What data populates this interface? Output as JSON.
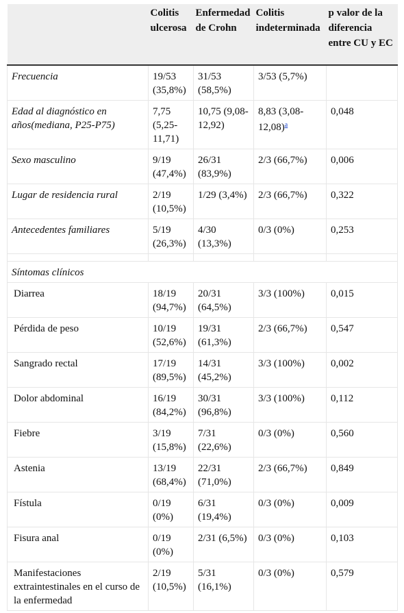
{
  "headers": [
    "",
    "Colitis ulcerosa",
    "Enfermedad de Crohn",
    "Colitis indeterminada",
    "p valor de la diferencia entre CU y EC"
  ],
  "rows": [
    {
      "label": "Frecuencia",
      "style": "italic",
      "cu": "19/53 (35,8%)",
      "ec": "31/53 (58,5%)",
      "ci": "3/53 (5,7%)",
      "p": ""
    },
    {
      "label": "Edad al diagnóstico en años(mediana, P25-P75)",
      "style": "italic",
      "cu": "7,75 (5,25-11,71)",
      "ec": "10,75 (9,08-12,92)",
      "ci": "8,83 (3,08-12,08)",
      "ci_footnote": "a",
      "p": "0,048"
    },
    {
      "label": "Sexo masculino",
      "style": "italic",
      "cu": "9/19 (47,4%)",
      "ec": "26/31 (83,9%)",
      "ci": "2/3 (66,7%)",
      "p": "0,006"
    },
    {
      "label": "Lugar de residencia rural",
      "style": "italic",
      "cu": "2/19 (10,5%)",
      "ec": "1/29 (3,4%)",
      "ci": "2/3 (66,7%)",
      "p": "0,322"
    },
    {
      "label": "Antecedentes familiares",
      "style": "italic",
      "cu": "5/19 (26,3%)",
      "ec": "4/30 (13,3%)",
      "ci": "0/3 (0%)",
      "p": "0,253"
    }
  ],
  "section_label": "Síntomas clínicos",
  "symptom_rows": [
    {
      "label": "Diarrea",
      "cu": "18/19 (94,7%)",
      "ec": "20/31 (64,5%)",
      "ci": "3/3 (100%)",
      "p": "0,015"
    },
    {
      "label": "Pérdida de peso",
      "cu": "10/19 (52,6%)",
      "ec": "19/31 (61,3%)",
      "ci": "2/3 (66,7%)",
      "p": "0,547"
    },
    {
      "label": "Sangrado rectal",
      "cu": "17/19 (89,5%)",
      "ec": "14/31 (45,2%)",
      "ci": "3/3 (100%)",
      "p": "0,002"
    },
    {
      "label": "Dolor abdominal",
      "cu": "16/19 (84,2%)",
      "ec": "30/31 (96,8%)",
      "ci": "3/3 (100%)",
      "p": "0,112"
    },
    {
      "label": "Fiebre",
      "cu": "3/19 (15,8%)",
      "ec": "7/31 (22,6%)",
      "ci": "0/3 (0%)",
      "p": "0,560"
    },
    {
      "label": "Astenia",
      "cu": "13/19 (68,4%)",
      "ec": "22/31 (71,0%)",
      "ci": "2/3 (66,7%)",
      "p": "0,849"
    },
    {
      "label": "Fístula",
      "cu": "0/19 (0%)",
      "ec": "6/31 (19,4%)",
      "ci": "0/3 (0%)",
      "p": "0,009"
    },
    {
      "label": "Fisura anal",
      "cu": "0/19 (0%)",
      "ec": "2/31 (6,5%)",
      "ci": "0/3 (0%)",
      "p": "0,103"
    },
    {
      "label": "Manifestaciones extraintestinales en el curso de la enfermedad",
      "cu": "2/19 (10,5%)",
      "ec": "5/31 (16,1%)",
      "ci": "0/3 (0%)",
      "p": "0,579"
    }
  ]
}
